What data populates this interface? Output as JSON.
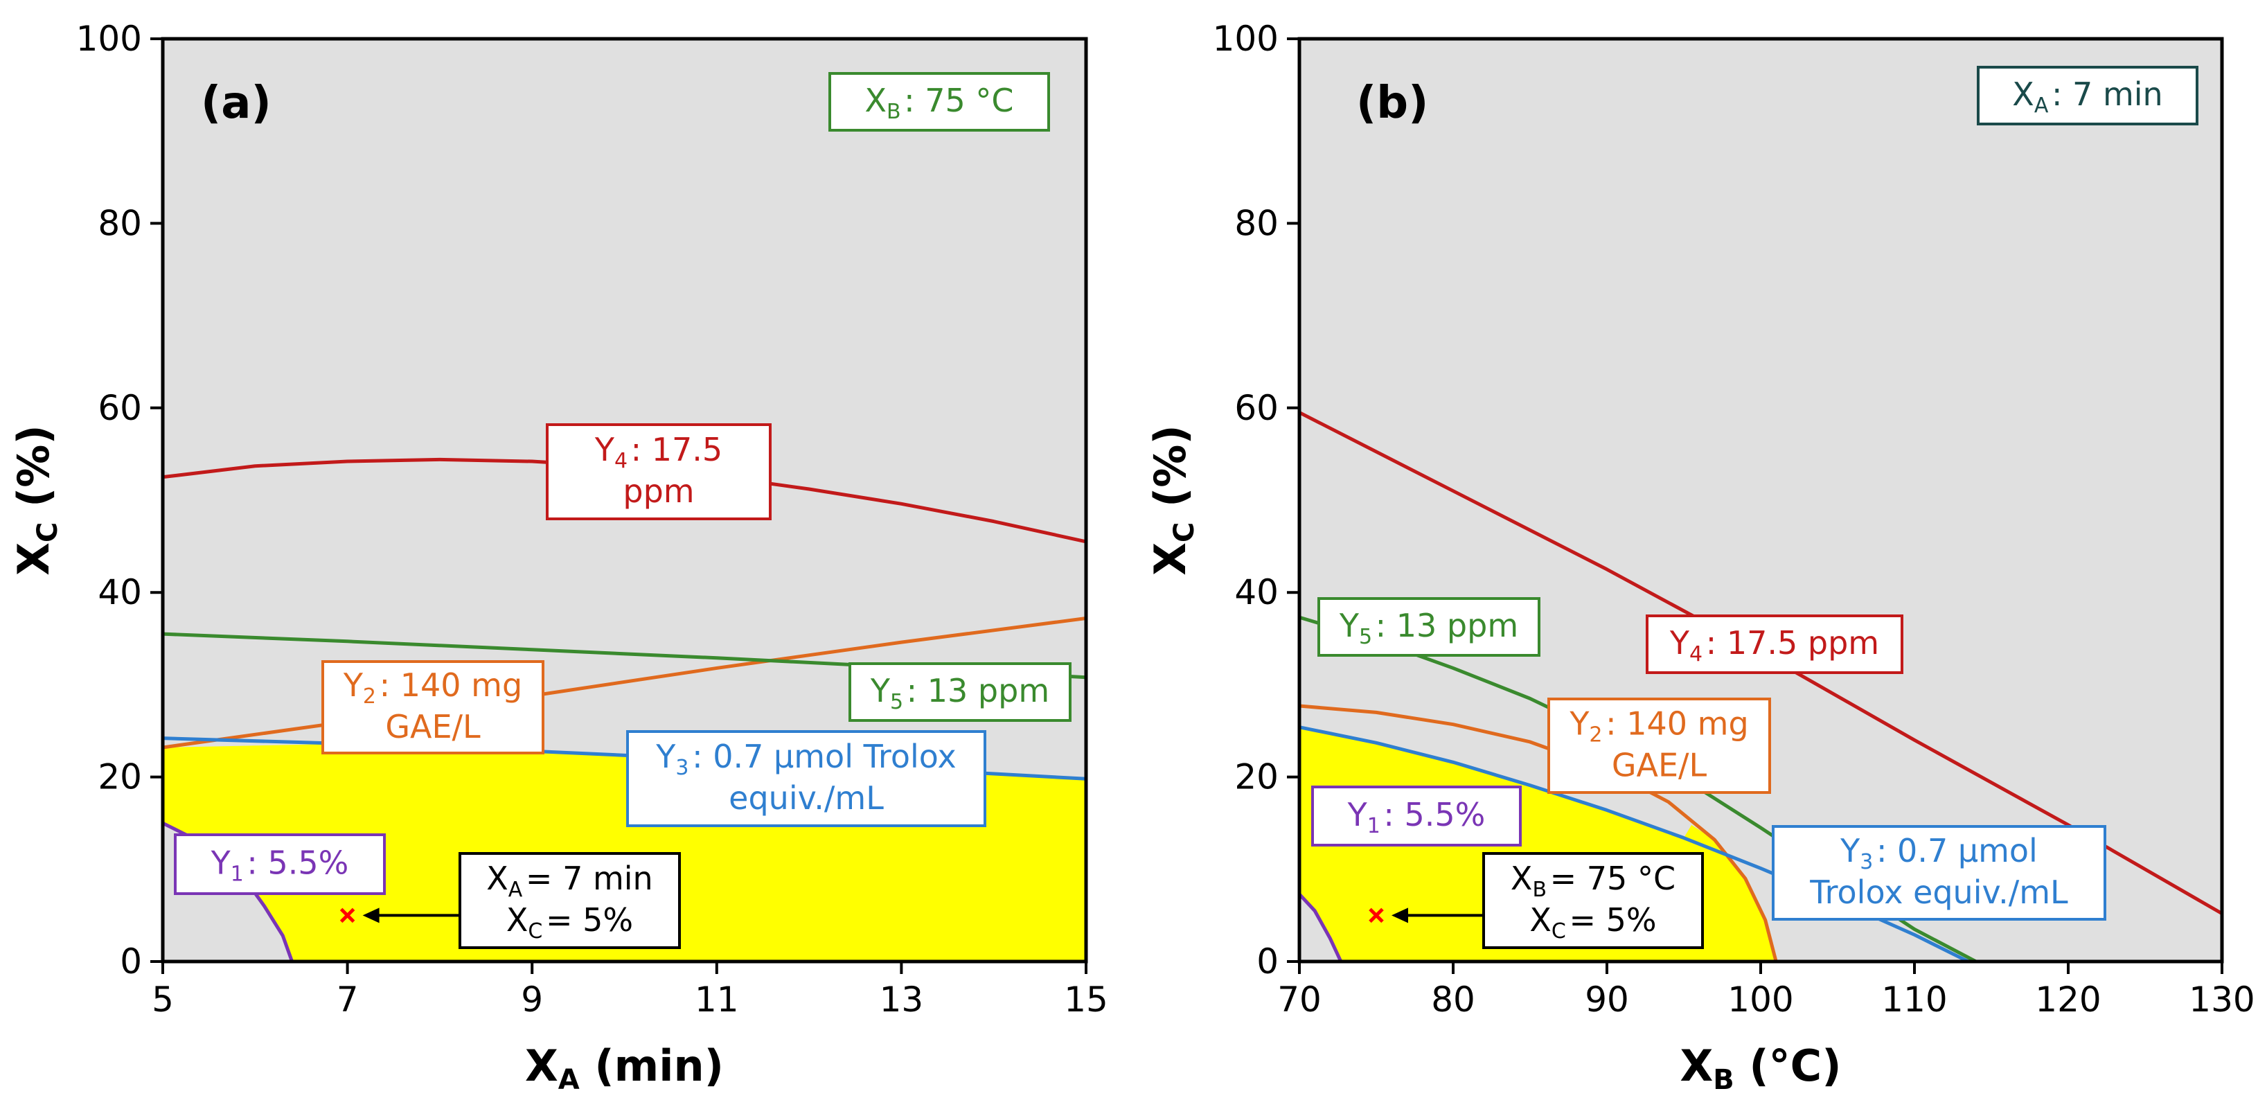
{
  "chart_data": [
    {
      "type": "line",
      "panel_label": "(a)",
      "xlabel": {
        "main": "X",
        "sub": "A",
        "rest": " (min)"
      },
      "ylabel": {
        "main": "X",
        "sub": "C",
        "rest": " (%)"
      },
      "xlim": [
        5,
        15
      ],
      "ylim": [
        0,
        100
      ],
      "xticks": [
        5,
        7,
        9,
        11,
        13,
        15
      ],
      "yticks": [
        0,
        20,
        40,
        60,
        80,
        100
      ],
      "grid": false,
      "background_color": "#e0e0e0",
      "feasible_color": "#ffff00",
      "condition": {
        "pre": "X",
        "sub": "B",
        "post": ": 75 °C",
        "color": "#3a8a2e"
      },
      "series": [
        {
          "name": "Y1: 5.5%",
          "color": "#7a35b5",
          "x": [
            5,
            5.3,
            5.6,
            5.9,
            6.1,
            6.3,
            6.4
          ],
          "y": [
            15,
            13.5,
            11.5,
            8.8,
            6,
            2.8,
            0
          ]
        },
        {
          "name": "Y2: 140 mg GAE/L",
          "color": "#e06a1e",
          "x": [
            5,
            7,
            9,
            11,
            13,
            15
          ],
          "y": [
            23.2,
            26,
            28.8,
            31.8,
            34.6,
            37.2
          ]
        },
        {
          "name": "Y3: 0.7 μmol Trolox equiv./mL",
          "color": "#2f7fd0",
          "x": [
            5,
            7,
            9,
            11,
            13,
            15
          ],
          "y": [
            24.2,
            23.6,
            22.8,
            21.9,
            20.9,
            19.8
          ]
        },
        {
          "name": "Y4: 17.5 ppm",
          "color": "#c21a1a",
          "x": [
            5,
            6,
            7,
            8,
            9,
            10,
            11,
            12,
            13,
            14,
            15
          ],
          "y": [
            52.5,
            53.7,
            54.2,
            54.4,
            54.2,
            53.6,
            52.6,
            51.2,
            49.6,
            47.7,
            45.5
          ]
        },
        {
          "name": "Y5: 13 ppm",
          "color": "#3a8a2e",
          "x": [
            5,
            7,
            9,
            11,
            13,
            15
          ],
          "y": [
            35.5,
            34.7,
            33.8,
            32.9,
            31.9,
            30.8
          ]
        }
      ],
      "series_labels": [
        {
          "lines": [
            {
              "pre": "Y",
              "sub": "1",
              "post": ": 5.5%"
            }
          ],
          "color": "#7a35b5"
        },
        {
          "lines": [
            {
              "pre": "Y",
              "sub": "2",
              "post": ": 140 mg"
            },
            {
              "pre": "GAE/L",
              "sub": "",
              "post": ""
            }
          ],
          "color": "#e06a1e"
        },
        {
          "lines": [
            {
              "pre": "Y",
              "sub": "3",
              "post": ": 0.7 μmol Trolox"
            },
            {
              "pre": "equiv./mL",
              "sub": "",
              "post": ""
            }
          ],
          "color": "#2f7fd0"
        },
        {
          "lines": [
            {
              "pre": "Y",
              "sub": "4",
              "post": ": 17.5"
            },
            {
              "pre": "ppm",
              "sub": "",
              "post": ""
            }
          ],
          "color": "#c21a1a"
        },
        {
          "lines": [
            {
              "pre": "Y",
              "sub": "5",
              "post": ": 13 ppm"
            }
          ],
          "color": "#3a8a2e"
        }
      ],
      "feasible_region": {
        "x": [
          6.4,
          15,
          15,
          13,
          11,
          9,
          7,
          5,
          5,
          5.3,
          5.6,
          5.9,
          6.1,
          6.3
        ],
        "y": [
          0,
          0,
          19.8,
          20.9,
          21.9,
          22.8,
          23.6,
          23.2,
          15,
          13.5,
          11.5,
          8.8,
          6,
          2.8
        ]
      },
      "optimum": {
        "x": 7,
        "y": 5,
        "marker": "x",
        "color": "#ff0000"
      },
      "optimum_label": [
        {
          "pre": "X",
          "sub": "A",
          "post": "= 7 min"
        },
        {
          "pre": "X",
          "sub": "C",
          "post": "= 5%"
        }
      ]
    },
    {
      "type": "line",
      "panel_label": "(b)",
      "xlabel": {
        "main": "X",
        "sub": "B",
        "rest": " (°C)"
      },
      "ylabel": {
        "main": "X",
        "sub": "C",
        "rest": " (%)"
      },
      "xlim": [
        70,
        130
      ],
      "ylim": [
        0,
        100
      ],
      "xticks": [
        70,
        80,
        90,
        100,
        110,
        120,
        130
      ],
      "yticks": [
        0,
        20,
        40,
        60,
        80,
        100
      ],
      "grid": false,
      "background_color": "#e0e0e0",
      "feasible_color": "#ffff00",
      "condition": {
        "pre": "X",
        "sub": "A",
        "post": ": 7 min",
        "color": "#1a4a4a"
      },
      "series": [
        {
          "name": "Y1: 5.5%",
          "color": "#7a35b5",
          "x": [
            70,
            71,
            72,
            72.7
          ],
          "y": [
            7.3,
            5.5,
            2.5,
            0
          ]
        },
        {
          "name": "Y2: 140 mg GAE/L",
          "color": "#e06a1e",
          "x": [
            70,
            75,
            80,
            85,
            90,
            94,
            97,
            99,
            100.3,
            101
          ],
          "y": [
            27.7,
            27,
            25.7,
            23.8,
            20.8,
            17.3,
            13.2,
            9,
            4.5,
            0
          ]
        },
        {
          "name": "Y3: 0.7 μmol Trolox equiv./mL",
          "color": "#2f7fd0",
          "x": [
            70,
            75,
            80,
            85,
            90,
            95,
            100,
            105,
            110,
            113.5
          ],
          "y": [
            25.4,
            23.7,
            21.6,
            19.1,
            16.4,
            13.4,
            10.1,
            6.6,
            2.9,
            0
          ]
        },
        {
          "name": "Y4: 17.5 ppm",
          "color": "#c21a1a",
          "x": [
            70,
            80,
            90,
            100,
            110,
            120,
            130
          ],
          "y": [
            59.5,
            51,
            42.5,
            33.5,
            24,
            14.8,
            5.2
          ]
        },
        {
          "name": "Y5: 13 ppm",
          "color": "#3a8a2e",
          "x": [
            70,
            75,
            80,
            85,
            90,
            95,
            100,
            105,
            110,
            114
          ],
          "y": [
            37.3,
            34.8,
            31.8,
            28.5,
            24.5,
            19.8,
            14.5,
            9,
            3.5,
            0
          ]
        }
      ],
      "series_labels": [
        {
          "lines": [
            {
              "pre": "Y",
              "sub": "1",
              "post": ": 5.5%"
            }
          ],
          "color": "#7a35b5"
        },
        {
          "lines": [
            {
              "pre": "Y",
              "sub": "2",
              "post": ": 140 mg"
            },
            {
              "pre": "GAE/L",
              "sub": "",
              "post": ""
            }
          ],
          "color": "#e06a1e"
        },
        {
          "lines": [
            {
              "pre": "Y",
              "sub": "3",
              "post": ": 0.7 μmol"
            },
            {
              "pre": "Trolox equiv./mL",
              "sub": "",
              "post": ""
            }
          ],
          "color": "#2f7fd0"
        },
        {
          "lines": [
            {
              "pre": "Y",
              "sub": "4",
              "post": ": 17.5 ppm"
            }
          ],
          "color": "#c21a1a"
        },
        {
          "lines": [
            {
              "pre": "Y",
              "sub": "5",
              "post": ": 13 ppm"
            }
          ],
          "color": "#3a8a2e"
        }
      ],
      "feasible_region": {
        "x": [
          72.7,
          101,
          100.3,
          99,
          97,
          95.5,
          95,
          90,
          85,
          80,
          75,
          70,
          70,
          71,
          72
        ],
        "y": [
          0,
          0,
          4.5,
          9,
          13.2,
          14.8,
          13.4,
          16.4,
          19.1,
          21.6,
          23.7,
          25.4,
          7.3,
          5.5,
          2.5
        ]
      },
      "optimum": {
        "x": 75,
        "y": 5,
        "marker": "x",
        "color": "#ff0000"
      },
      "optimum_label": [
        {
          "pre": "X",
          "sub": "B",
          "post": "= 75 °C"
        },
        {
          "pre": "X",
          "sub": "C",
          "post": "= 5%"
        }
      ]
    }
  ]
}
